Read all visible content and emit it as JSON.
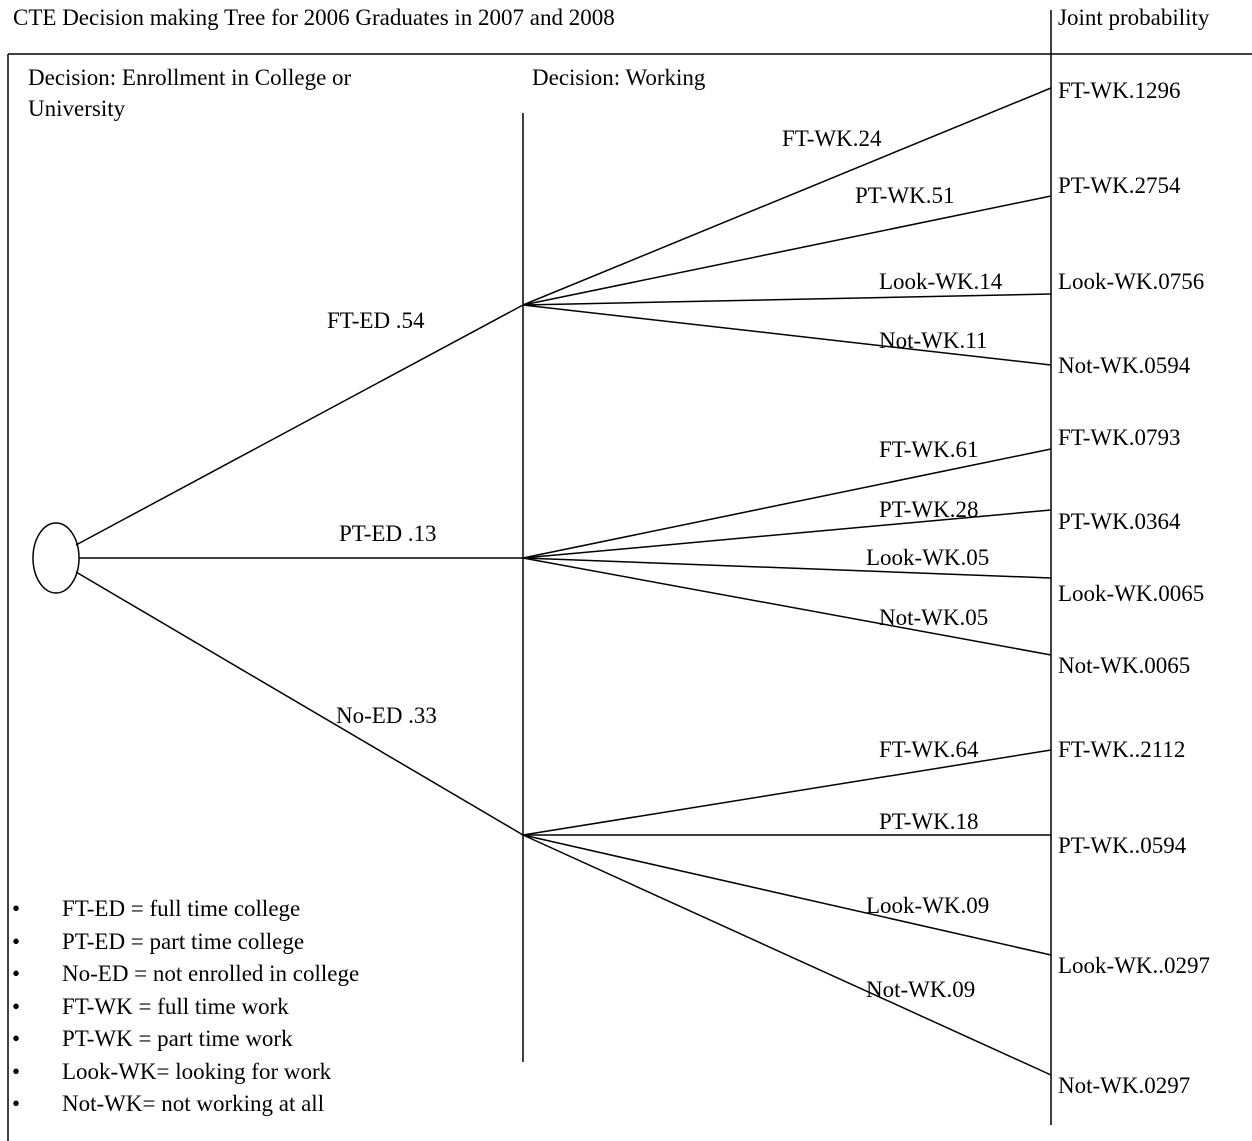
{
  "title": "CTE Decision making Tree for 2006 Graduates in 2007 and 2008",
  "joint_header": "Joint probability",
  "stage_headers": {
    "enrollment": [
      "Decision: Enrollment in College or",
      "University"
    ],
    "working": "Decision: Working"
  },
  "branches": [
    {
      "label": "FT-ED .54",
      "sub": [
        {
          "label": "FT-WK.24",
          "joint": "FT-WK.1296"
        },
        {
          "label": "PT-WK.51",
          "joint": "PT-WK.2754"
        },
        {
          "label": "Look-WK.14",
          "joint": "Look-WK.0756"
        },
        {
          "label": "Not-WK.11",
          "joint": "Not-WK.0594"
        }
      ]
    },
    {
      "label": "PT-ED .13",
      "sub": [
        {
          "label": "FT-WK.61",
          "joint": "FT-WK.0793"
        },
        {
          "label": "PT-WK.28",
          "joint": "PT-WK.0364"
        },
        {
          "label": "Look-WK.05",
          "joint": "Look-WK.0065"
        },
        {
          "label": "Not-WK.05",
          "joint": "Not-WK.0065"
        }
      ]
    },
    {
      "label": "No-ED .33",
      "sub": [
        {
          "label": "FT-WK.64",
          "joint": "FT-WK..2112"
        },
        {
          "label": "PT-WK.18",
          "joint": "PT-WK..0594"
        },
        {
          "label": "Look-WK.09",
          "joint": "Look-WK..0297"
        },
        {
          "label": "Not-WK.09",
          "joint": "Not-WK.0297"
        }
      ]
    }
  ],
  "legend": [
    "FT-ED = full time college",
    "PT-ED = part time college",
    "No-ED = not enrolled in college",
    "FT-WK = full time work",
    "PT-WK = part time work",
    "Look-WK= looking for work",
    "Not-WK= not working at all"
  ]
}
